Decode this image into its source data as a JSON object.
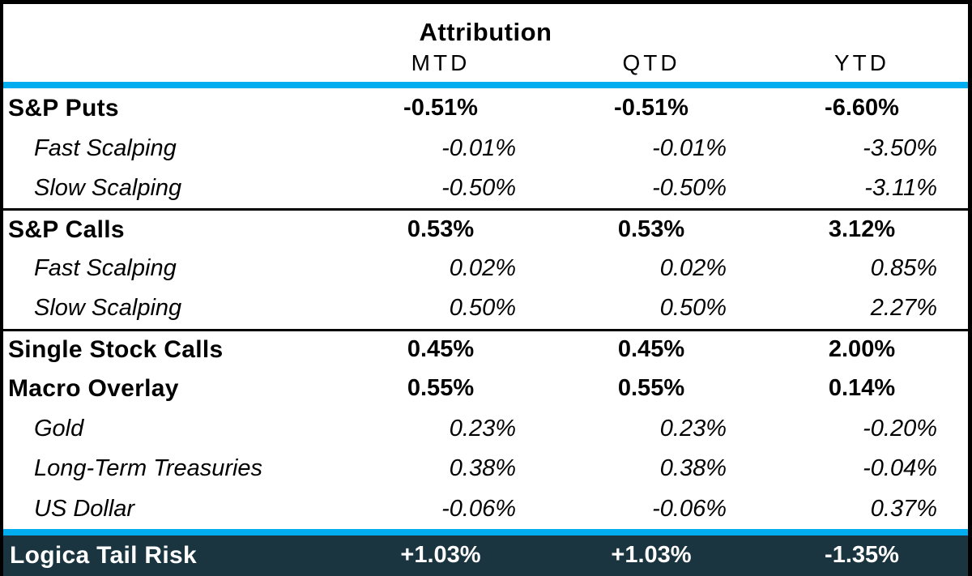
{
  "table": {
    "title": "Attribution",
    "columns": [
      "MTD",
      "QTD",
      "YTD"
    ],
    "rows": [
      {
        "label": "S&P Puts",
        "style": "bold",
        "values": [
          "-0.51%",
          "-0.51%",
          "-6.60%"
        ]
      },
      {
        "label": "Fast Scalping",
        "style": "italic",
        "values": [
          "-0.01%",
          "-0.01%",
          "-3.50%"
        ]
      },
      {
        "label": "Slow Scalping",
        "style": "italic",
        "values": [
          "-0.50%",
          "-0.50%",
          "-3.11%"
        ]
      },
      {
        "label": "S&P Calls",
        "style": "bold",
        "values": [
          "0.53%",
          "0.53%",
          "3.12%"
        ]
      },
      {
        "label": "Fast Scalping",
        "style": "italic",
        "values": [
          "0.02%",
          "0.02%",
          "0.85%"
        ]
      },
      {
        "label": "Slow Scalping",
        "style": "italic",
        "values": [
          "0.50%",
          "0.50%",
          "2.27%"
        ]
      },
      {
        "label": "Single Stock Calls",
        "style": "bold",
        "values": [
          "0.45%",
          "0.45%",
          "2.00%"
        ]
      },
      {
        "label": "Macro Overlay",
        "style": "bold",
        "values": [
          "0.55%",
          "0.55%",
          "0.14%"
        ]
      },
      {
        "label": "Gold",
        "style": "italic",
        "values": [
          "0.23%",
          "0.23%",
          "-0.20%"
        ]
      },
      {
        "label": "Long-Term Treasuries",
        "style": "italic",
        "values": [
          "0.38%",
          "0.38%",
          "-0.04%"
        ]
      },
      {
        "label": "US Dollar",
        "style": "italic",
        "values": [
          "-0.06%",
          "-0.06%",
          "0.37%"
        ]
      }
    ],
    "footer": {
      "label": "Logica Tail Risk",
      "values": [
        "+1.03%",
        "+1.03%",
        "-1.35%"
      ]
    }
  },
  "colors": {
    "accent_blue": "#00AEEF",
    "footer_background": "#1A3540",
    "border": "#000000"
  }
}
